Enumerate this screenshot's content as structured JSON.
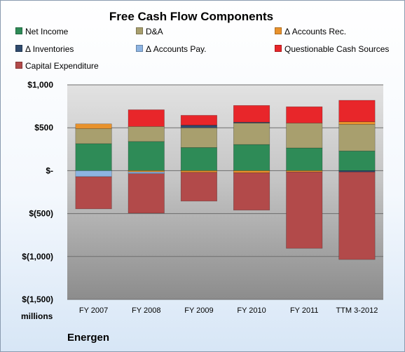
{
  "chart_data": {
    "type": "bar",
    "stacked": true,
    "title": "Free Cash Flow Components",
    "units_label": "millions",
    "company": "Energen",
    "categories": [
      "FY 2007",
      "FY 2008",
      "FY 2009",
      "FY 2010",
      "FY 2011",
      "TTM 3-2012"
    ],
    "y_ticks": [
      {
        "value": 1000,
        "label": "$1,000"
      },
      {
        "value": 500,
        "label": "$500"
      },
      {
        "value": 0,
        "label": "$-"
      },
      {
        "value": -500,
        "label": "$(500)"
      },
      {
        "value": -1000,
        "label": "$(1,000)"
      },
      {
        "value": -1500,
        "label": "$(1,500)"
      }
    ],
    "ylim": [
      -1500,
      1000
    ],
    "grid": true,
    "legend_position": "top",
    "series": [
      {
        "name": "Net Income",
        "color": "#2e8b57",
        "values": [
          315,
          340,
          270,
          305,
          265,
          230
        ]
      },
      {
        "name": "D&A",
        "color": "#a89f6e",
        "values": [
          175,
          175,
          230,
          250,
          290,
          310
        ]
      },
      {
        "name": "Δ Accounts Rec.",
        "color": "#e8922c",
        "values": [
          55,
          -15,
          -20,
          -25,
          -15,
          30
        ]
      },
      {
        "name": "Δ Inventories",
        "color": "#2f4b6e",
        "values": [
          0,
          0,
          30,
          10,
          0,
          -15
        ]
      },
      {
        "name": "Δ Accounts Pay.",
        "color": "#8db4e2",
        "values": [
          -70,
          -20,
          0,
          0,
          0,
          0
        ]
      },
      {
        "name": "Questionable Cash Sources",
        "color": "#e8262a",
        "values": [
          0,
          195,
          115,
          195,
          190,
          250
        ]
      },
      {
        "name": "Capital Expenditure",
        "color": "#b24a4a",
        "values": [
          -375,
          -460,
          -335,
          -435,
          -890,
          -1020
        ]
      }
    ]
  }
}
